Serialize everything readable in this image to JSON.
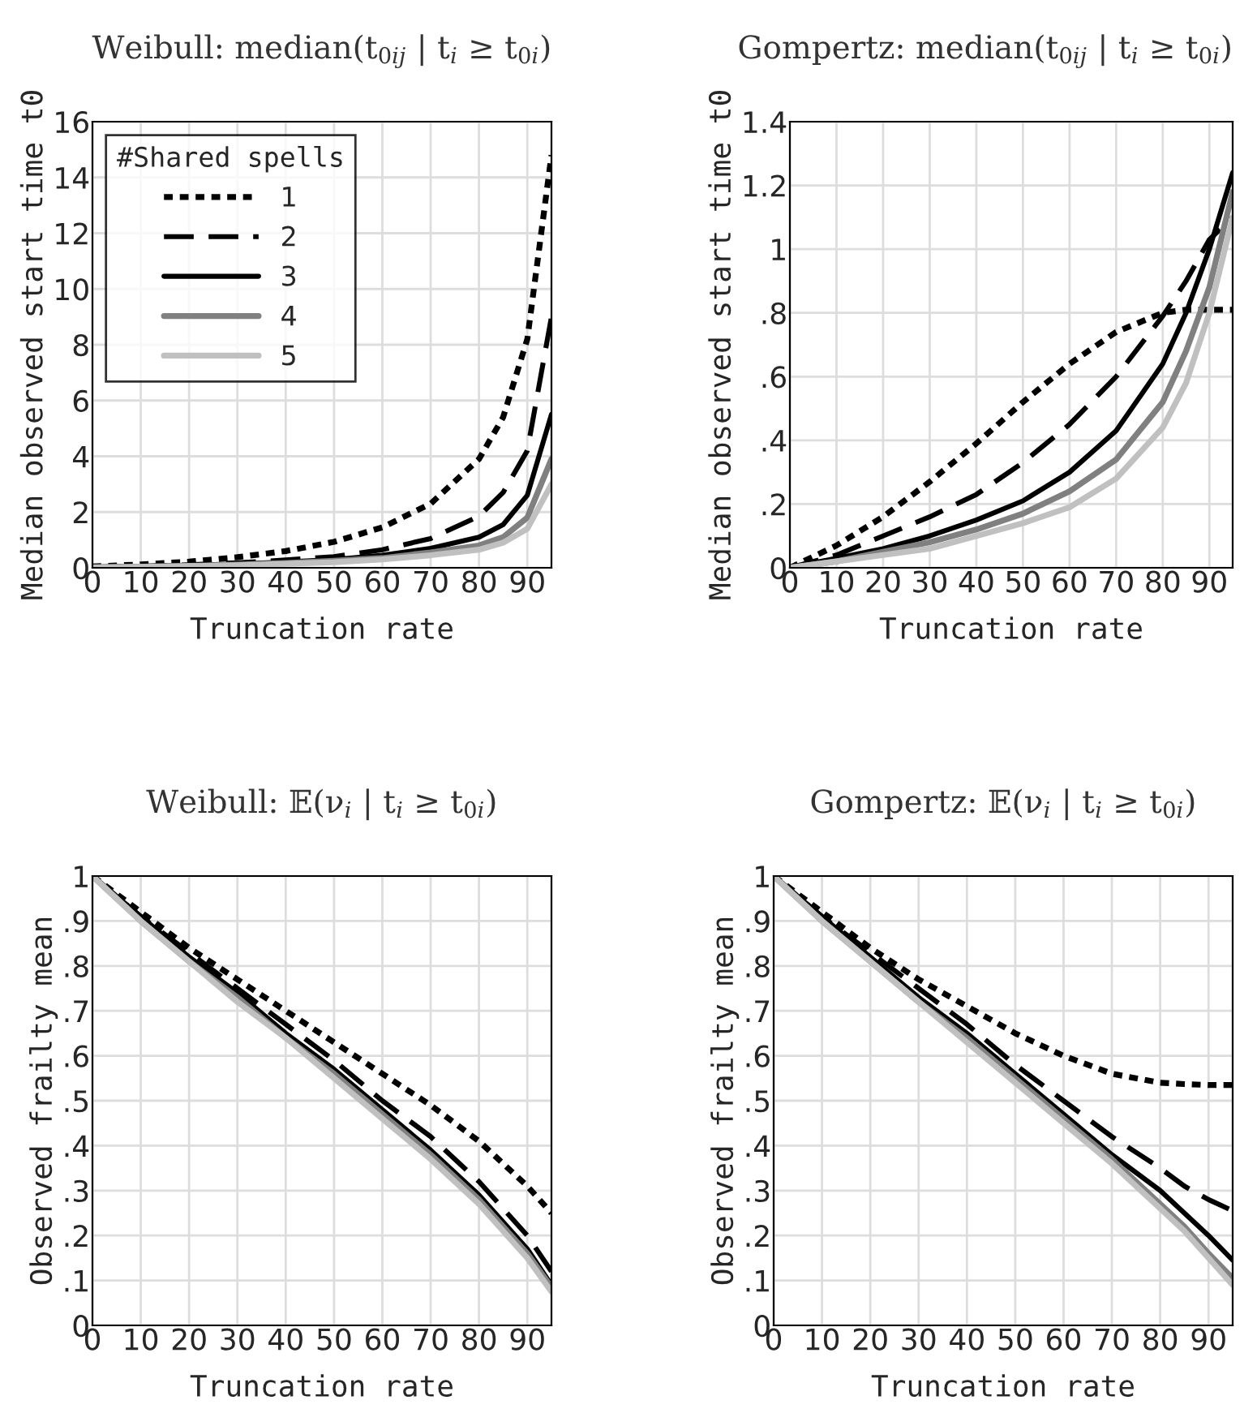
{
  "chart_data": [
    {
      "type": "line",
      "title": "Weibull: median(t$_{0ij}$ | t$_{i}$ ≥ t$_{0i}$)",
      "xlabel": "Truncation rate",
      "ylabel": "Median observed start time t0",
      "legend_title": "#Shared spells",
      "legend": "top left",
      "grid": true,
      "x": [
        0,
        10,
        20,
        30,
        40,
        50,
        60,
        70,
        80,
        85,
        90,
        95
      ],
      "xlim": [
        0,
        95
      ],
      "xticks": [
        0,
        10,
        20,
        30,
        40,
        50,
        60,
        70,
        80,
        90
      ],
      "ylim": [
        0,
        16
      ],
      "yticks": [
        0,
        2,
        4,
        6,
        8,
        10,
        12,
        14,
        16
      ],
      "series": [
        {
          "name": "1",
          "color": "#000000",
          "line_style": "dotted",
          "values": [
            0.05,
            0.12,
            0.22,
            0.38,
            0.6,
            0.93,
            1.45,
            2.3,
            3.9,
            5.4,
            8.2,
            14.8
          ]
        },
        {
          "name": "2",
          "color": "#000000",
          "line_style": "dashed",
          "values": [
            0.03,
            0.06,
            0.11,
            0.18,
            0.28,
            0.4,
            0.65,
            1.05,
            1.85,
            2.7,
            4.2,
            9.0
          ]
        },
        {
          "name": "3",
          "color": "#000000",
          "line_style": "solid",
          "values": [
            0.02,
            0.05,
            0.09,
            0.14,
            0.21,
            0.3,
            0.45,
            0.7,
            1.1,
            1.55,
            2.6,
            5.5
          ]
        },
        {
          "name": "4",
          "color": "#808080",
          "line_style": "solid",
          "values": [
            0.02,
            0.04,
            0.07,
            0.11,
            0.17,
            0.25,
            0.35,
            0.55,
            0.8,
            1.1,
            1.8,
            3.9
          ]
        },
        {
          "name": "5",
          "color": "#c0c0c0",
          "line_style": "solid",
          "values": [
            0.01,
            0.03,
            0.06,
            0.09,
            0.14,
            0.2,
            0.3,
            0.45,
            0.65,
            0.9,
            1.4,
            3.0
          ]
        }
      ]
    },
    {
      "type": "line",
      "title": "Gompertz: median(t$_{0ij}$ | t$_{i}$ ≥ t$_{0i}$)",
      "xlabel": "Truncation rate",
      "ylabel": "Median observed start time t0",
      "grid": true,
      "x": [
        0,
        10,
        20,
        30,
        40,
        50,
        60,
        70,
        80,
        85,
        90,
        95
      ],
      "xlim": [
        0,
        95
      ],
      "xticks": [
        0,
        10,
        20,
        30,
        40,
        50,
        60,
        70,
        80,
        90
      ],
      "ylim": [
        0,
        1.4
      ],
      "yticks": [
        0,
        {
          "value": 0.2,
          "label": ".2"
        },
        {
          "value": 0.4,
          "label": ".4"
        },
        {
          "value": 0.6,
          "label": ".6"
        },
        {
          "value": 0.8,
          "label": ".8"
        },
        1,
        1.2,
        1.4
      ],
      "series": [
        {
          "color": "#000000",
          "line_style": "dotted",
          "values": [
            0,
            0.07,
            0.16,
            0.27,
            0.39,
            0.52,
            0.64,
            0.74,
            0.8,
            0.81,
            0.81,
            0.81
          ]
        },
        {
          "color": "#000000",
          "line_style": "dashed",
          "values": [
            0,
            0.04,
            0.1,
            0.16,
            0.23,
            0.33,
            0.45,
            0.6,
            0.79,
            0.9,
            1.03,
            1.1
          ]
        },
        {
          "color": "#000000",
          "line_style": "solid",
          "values": [
            0,
            0.03,
            0.06,
            0.1,
            0.15,
            0.21,
            0.3,
            0.43,
            0.64,
            0.8,
            1.0,
            1.24
          ]
        },
        {
          "color": "#808080",
          "line_style": "solid",
          "values": [
            0,
            0.02,
            0.05,
            0.08,
            0.12,
            0.17,
            0.24,
            0.34,
            0.52,
            0.68,
            0.88,
            1.18
          ]
        },
        {
          "color": "#c0c0c0",
          "line_style": "solid",
          "values": [
            0,
            0.02,
            0.04,
            0.06,
            0.1,
            0.14,
            0.19,
            0.28,
            0.44,
            0.58,
            0.8,
            1.1
          ]
        }
      ]
    },
    {
      "type": "line",
      "title": "Weibull: 𝔼(ν$_{i}$ | t$_{i}$ ≥ t$_{0i}$)",
      "xlabel": "Truncation rate",
      "ylabel": "Observed frailty mean",
      "grid": true,
      "x": [
        0,
        10,
        20,
        30,
        40,
        50,
        60,
        70,
        80,
        85,
        90,
        95
      ],
      "xlim": [
        0,
        95
      ],
      "xticks": [
        0,
        10,
        20,
        30,
        40,
        50,
        60,
        70,
        80,
        90
      ],
      "ylim": [
        0,
        1
      ],
      "yticks": [
        0,
        {
          "value": 0.1,
          "label": ".1"
        },
        {
          "value": 0.2,
          "label": ".2"
        },
        {
          "value": 0.3,
          "label": ".3"
        },
        {
          "value": 0.4,
          "label": ".4"
        },
        {
          "value": 0.5,
          "label": ".5"
        },
        {
          "value": 0.6,
          "label": ".6"
        },
        {
          "value": 0.7,
          "label": ".7"
        },
        {
          "value": 0.8,
          "label": ".8"
        },
        {
          "value": 0.9,
          "label": ".9"
        },
        1
      ],
      "series": [
        {
          "color": "#000000",
          "line_style": "dotted",
          "values": [
            1,
            0.92,
            0.84,
            0.77,
            0.7,
            0.63,
            0.56,
            0.49,
            0.41,
            0.36,
            0.31,
            0.25
          ]
        },
        {
          "color": "#000000",
          "line_style": "dashed",
          "values": [
            1,
            0.91,
            0.83,
            0.75,
            0.67,
            0.59,
            0.5,
            0.42,
            0.32,
            0.26,
            0.2,
            0.12
          ]
        },
        {
          "color": "#000000",
          "line_style": "solid",
          "values": [
            1,
            0.91,
            0.82,
            0.74,
            0.65,
            0.57,
            0.48,
            0.39,
            0.29,
            0.23,
            0.17,
            0.09
          ]
        },
        {
          "color": "#808080",
          "line_style": "solid",
          "values": [
            1,
            0.9,
            0.81,
            0.73,
            0.64,
            0.56,
            0.47,
            0.38,
            0.28,
            0.22,
            0.16,
            0.085
          ]
        },
        {
          "color": "#c0c0c0",
          "line_style": "solid",
          "values": [
            1,
            0.9,
            0.81,
            0.72,
            0.64,
            0.55,
            0.46,
            0.37,
            0.27,
            0.21,
            0.15,
            0.075
          ]
        }
      ]
    },
    {
      "type": "line",
      "title": "Gompertz: 𝔼(ν$_{i}$ | t$_{i}$ ≥ t$_{0i}$)",
      "xlabel": "Truncation rate",
      "ylabel": "Observed frailty mean",
      "grid": true,
      "x": [
        0,
        10,
        20,
        30,
        40,
        50,
        60,
        70,
        80,
        85,
        90,
        95
      ],
      "xlim": [
        0,
        95
      ],
      "xticks": [
        0,
        10,
        20,
        30,
        40,
        50,
        60,
        70,
        80,
        90
      ],
      "ylim": [
        0,
        1
      ],
      "yticks": [
        0,
        {
          "value": 0.1,
          "label": ".1"
        },
        {
          "value": 0.2,
          "label": ".2"
        },
        {
          "value": 0.3,
          "label": ".3"
        },
        {
          "value": 0.4,
          "label": ".4"
        },
        {
          "value": 0.5,
          "label": ".5"
        },
        {
          "value": 0.6,
          "label": ".6"
        },
        {
          "value": 0.7,
          "label": ".7"
        },
        {
          "value": 0.8,
          "label": ".8"
        },
        {
          "value": 0.9,
          "label": ".9"
        },
        1
      ],
      "series": [
        {
          "color": "#000000",
          "line_style": "dotted",
          "values": [
            1,
            0.92,
            0.84,
            0.77,
            0.71,
            0.65,
            0.6,
            0.56,
            0.54,
            0.537,
            0.535,
            0.535
          ]
        },
        {
          "color": "#000000",
          "line_style": "dashed",
          "values": [
            1,
            0.91,
            0.83,
            0.75,
            0.67,
            0.58,
            0.5,
            0.42,
            0.35,
            0.31,
            0.28,
            0.255
          ]
        },
        {
          "color": "#000000",
          "line_style": "solid",
          "values": [
            1,
            0.91,
            0.82,
            0.73,
            0.65,
            0.56,
            0.47,
            0.38,
            0.3,
            0.25,
            0.2,
            0.145
          ]
        },
        {
          "color": "#808080",
          "line_style": "solid",
          "values": [
            1,
            0.9,
            0.81,
            0.72,
            0.64,
            0.55,
            0.46,
            0.37,
            0.27,
            0.22,
            0.16,
            0.105
          ]
        },
        {
          "color": "#c0c0c0",
          "line_style": "solid",
          "values": [
            1,
            0.9,
            0.81,
            0.72,
            0.63,
            0.54,
            0.45,
            0.36,
            0.26,
            0.21,
            0.15,
            0.09
          ]
        }
      ]
    }
  ]
}
